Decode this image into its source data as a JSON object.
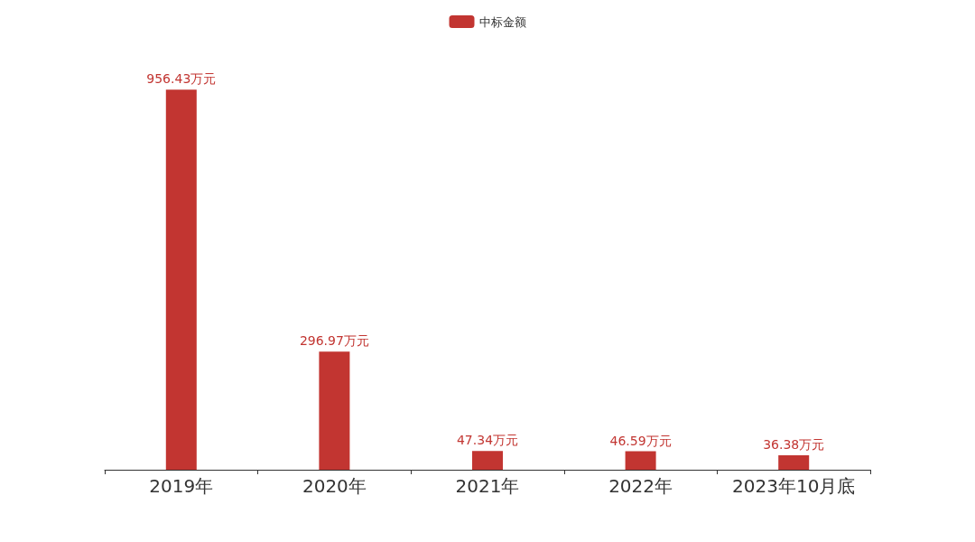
{
  "chart_data": {
    "type": "bar",
    "categories": [
      "2019年",
      "2020年",
      "2021年",
      "2022年",
      "2023年10月底"
    ],
    "series": [
      {
        "name": "中标金额",
        "color": "#c23531",
        "values": [
          956.43,
          296.97,
          47.34,
          46.59,
          36.38
        ],
        "value_labels": [
          "956.43万元",
          "296.97万元",
          "47.34万元",
          "46.59万元",
          "36.38万元"
        ]
      }
    ],
    "legend": "top",
    "tick_labels": "x",
    "grid": false
  }
}
